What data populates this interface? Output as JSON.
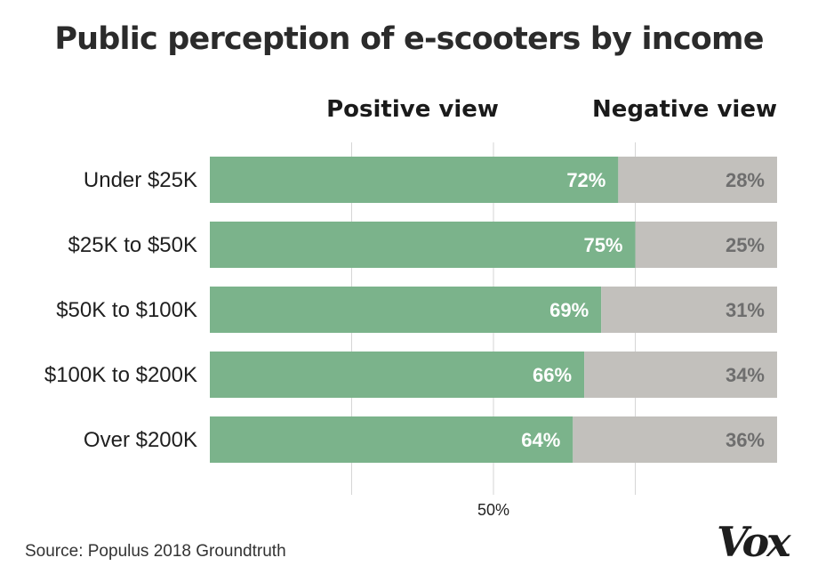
{
  "chart_data": {
    "type": "bar",
    "stacked": true,
    "orientation": "horizontal",
    "title": "Public perception of e-scooters by income",
    "categories": [
      "Under $25K",
      "$25K to $50K",
      "$50K to $100K",
      "$100K to $200K",
      "Over $200K"
    ],
    "series": [
      {
        "name": "Positive view",
        "values": [
          72,
          75,
          69,
          66,
          64
        ],
        "labels": [
          "72%",
          "75%",
          "69%",
          "66%",
          "64%"
        ],
        "color": "#7bb38b"
      },
      {
        "name": "Negative view",
        "values": [
          28,
          25,
          31,
          34,
          36
        ],
        "labels": [
          "28%",
          "25%",
          "31%",
          "34%",
          "36%"
        ],
        "color": "#c2c0bc"
      }
    ],
    "xlim": [
      0,
      100
    ],
    "ticks": [
      {
        "value": 50,
        "label": "50%"
      }
    ],
    "grid": true,
    "legend": "top"
  },
  "source": "Source: Populus 2018 Groundtruth",
  "logo": "Vox",
  "colors": {
    "gridline": "#d6d6d6"
  }
}
